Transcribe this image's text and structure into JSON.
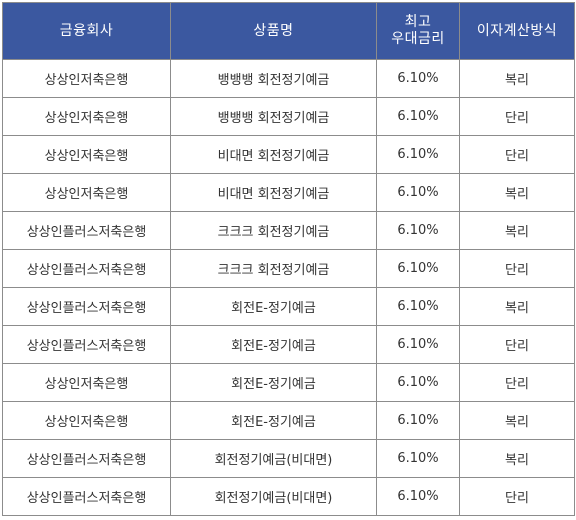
{
  "header": {
    "company": "금융회사",
    "product": "상품명",
    "rate_line1": "최고",
    "rate_line2": "우대금리",
    "method": "이자계산방식"
  },
  "rows": [
    {
      "company": "상상인저축은행",
      "product": "뱅뱅뱅 회전정기예금",
      "rate": "6.10%",
      "method": "복리"
    },
    {
      "company": "상상인저축은행",
      "product": "뱅뱅뱅 회전정기예금",
      "rate": "6.10%",
      "method": "단리"
    },
    {
      "company": "상상인저축은행",
      "product": "비대면 회전정기예금",
      "rate": "6.10%",
      "method": "단리"
    },
    {
      "company": "상상인저축은행",
      "product": "비대면 회전정기예금",
      "rate": "6.10%",
      "method": "복리"
    },
    {
      "company": "상상인플러스저축은행",
      "product": "크크크 회전정기예금",
      "rate": "6.10%",
      "method": "복리"
    },
    {
      "company": "상상인플러스저축은행",
      "product": "크크크 회전정기예금",
      "rate": "6.10%",
      "method": "단리"
    },
    {
      "company": "상상인플러스저축은행",
      "product": "회전E-정기예금",
      "rate": "6.10%",
      "method": "복리"
    },
    {
      "company": "상상인플러스저축은행",
      "product": "회전E-정기예금",
      "rate": "6.10%",
      "method": "단리"
    },
    {
      "company": "상상인저축은행",
      "product": "회전E-정기예금",
      "rate": "6.10%",
      "method": "단리"
    },
    {
      "company": "상상인저축은행",
      "product": "회전E-정기예금",
      "rate": "6.10%",
      "method": "복리"
    },
    {
      "company": "상상인플러스저축은행",
      "product": "회전정기예금(비대면)",
      "rate": "6.10%",
      "method": "복리"
    },
    {
      "company": "상상인플러스저축은행",
      "product": "회전정기예금(비대면)",
      "rate": "6.10%",
      "method": "단리"
    }
  ],
  "colors": {
    "header_bg": "#3b58a0",
    "header_text": "#ffffff",
    "border": "#8c8c8c",
    "cell_text": "#333333"
  }
}
